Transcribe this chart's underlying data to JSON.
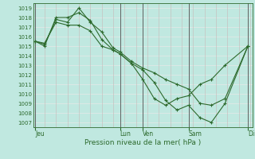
{
  "xlabel": "Pression niveau de la mer( hPa )",
  "bg_color": "#c0e8e0",
  "line_color": "#2d6a2d",
  "grid_color_v": "#c8b8b8",
  "grid_color_h": "#e8e8e8",
  "spine_color": "#2d6a2d",
  "ylim": [
    1006.5,
    1019.5
  ],
  "yticks": [
    1007,
    1008,
    1009,
    1010,
    1011,
    1012,
    1013,
    1014,
    1015,
    1016,
    1017,
    1018,
    1019
  ],
  "xlim": [
    0,
    9.6
  ],
  "day_positions": [
    0.1,
    3.8,
    4.8,
    6.8,
    9.4
  ],
  "day_labels": [
    "Jeu",
    "Lun",
    "Ven",
    "Sam",
    "Dim"
  ],
  "line1_x": [
    0.1,
    0.5,
    1.0,
    1.5,
    2.0,
    2.5,
    3.0,
    3.5,
    3.8,
    4.3,
    4.8,
    5.3,
    5.8,
    6.3,
    6.8,
    7.3,
    7.8,
    8.4,
    9.4
  ],
  "line1_y": [
    1015.5,
    1015.2,
    1017.8,
    1017.5,
    1019.0,
    1017.5,
    1016.5,
    1014.8,
    1014.4,
    1013.4,
    1012.7,
    1012.2,
    1011.5,
    1011.0,
    1010.5,
    1009.0,
    1008.8,
    1009.5,
    1015.0
  ],
  "line2_x": [
    0.1,
    0.5,
    1.0,
    1.5,
    2.0,
    2.5,
    3.0,
    3.5,
    3.8,
    4.3,
    4.8,
    5.3,
    5.8,
    6.3,
    6.8,
    7.3,
    7.8,
    8.4,
    9.4
  ],
  "line2_y": [
    1015.5,
    1015.0,
    1018.0,
    1018.0,
    1018.5,
    1017.7,
    1015.7,
    1014.6,
    1014.2,
    1013.2,
    1012.5,
    1011.2,
    1009.3,
    1008.3,
    1008.8,
    1007.5,
    1007.0,
    1009.0,
    1015.0
  ],
  "line3_x": [
    0.1,
    0.5,
    1.0,
    1.5,
    2.0,
    2.5,
    3.0,
    3.5,
    3.8,
    4.3,
    4.8,
    5.3,
    5.8,
    6.3,
    6.8,
    7.3,
    7.8,
    8.4,
    9.4
  ],
  "line3_y": [
    1015.5,
    1015.3,
    1017.5,
    1017.2,
    1017.2,
    1016.6,
    1015.0,
    1014.6,
    1014.2,
    1013.2,
    1011.5,
    1009.5,
    1008.8,
    1009.5,
    1009.8,
    1011.0,
    1011.5,
    1013.0,
    1015.0
  ],
  "vline_positions": [
    0.1,
    3.8,
    4.8,
    6.8,
    9.4
  ],
  "vline_color": "#606060",
  "marker": "+"
}
